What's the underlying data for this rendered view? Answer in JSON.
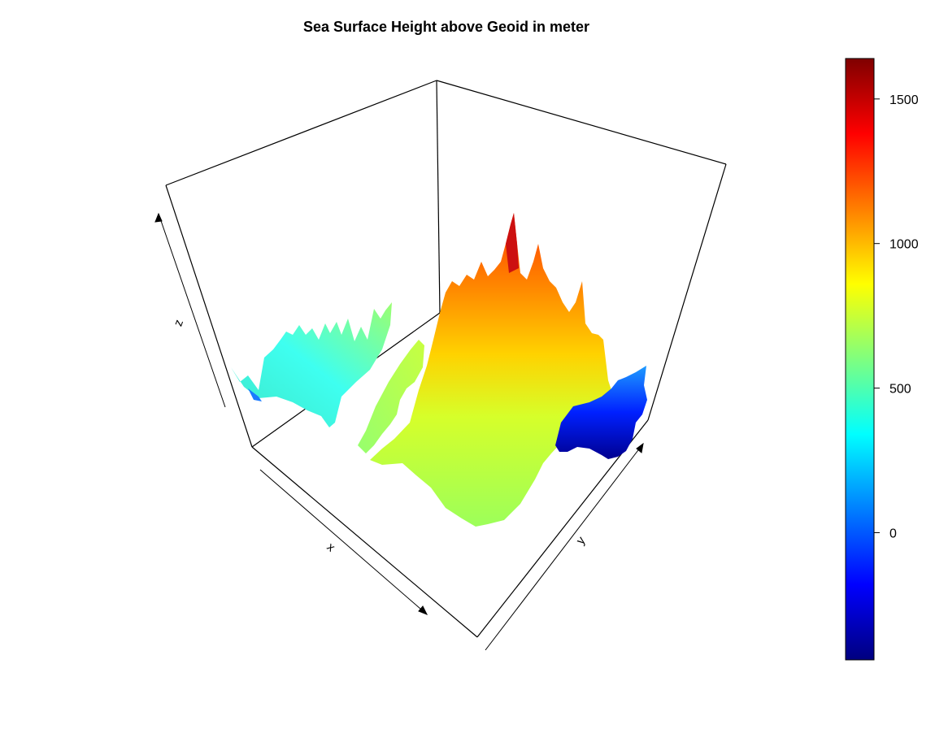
{
  "chart_data": {
    "type": "surface3d",
    "title": "Sea Surface Height above Geoid in meter",
    "xlabel": "x",
    "ylabel": "y",
    "zlabel": "z",
    "colorbar": {
      "ticks": [
        0,
        500,
        1000,
        1500
      ],
      "tick_labels": [
        "0",
        "500",
        "1000",
        "1500"
      ],
      "range": [
        -440,
        1640
      ],
      "colormap": "jet",
      "colors": [
        "#00007F",
        "#0000FF",
        "#007FFF",
        "#00FFFF",
        "#7FFF7F",
        "#FFFF00",
        "#FF7F00",
        "#FF0000",
        "#7F0000"
      ]
    },
    "z_peak": 1540,
    "grid": false,
    "legend_position": "right"
  }
}
